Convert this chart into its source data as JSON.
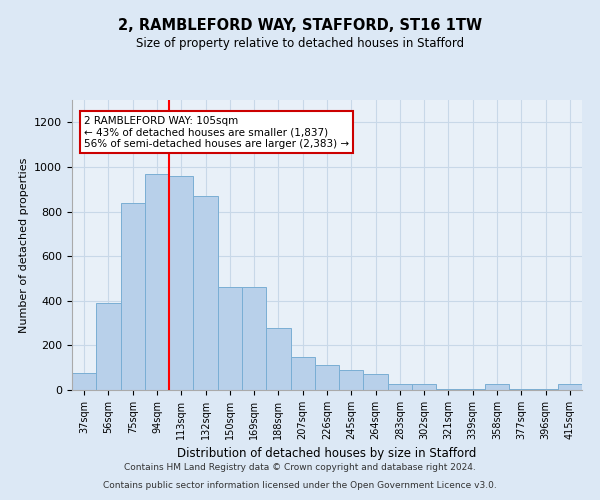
{
  "title1": "2, RAMBLEFORD WAY, STAFFORD, ST16 1TW",
  "title2": "Size of property relative to detached houses in Stafford",
  "xlabel": "Distribution of detached houses by size in Stafford",
  "ylabel": "Number of detached properties",
  "categories": [
    "37sqm",
    "56sqm",
    "75sqm",
    "94sqm",
    "113sqm",
    "132sqm",
    "150sqm",
    "169sqm",
    "188sqm",
    "207sqm",
    "226sqm",
    "245sqm",
    "264sqm",
    "283sqm",
    "302sqm",
    "321sqm",
    "339sqm",
    "358sqm",
    "377sqm",
    "396sqm",
    "415sqm"
  ],
  "values": [
    75,
    390,
    840,
    970,
    960,
    870,
    460,
    460,
    280,
    150,
    110,
    90,
    70,
    25,
    25,
    5,
    5,
    25,
    5,
    5,
    25
  ],
  "bar_color": "#b8d0ea",
  "bar_edge_color": "#7aaed4",
  "red_line_index": 4,
  "annotation_text": "2 RAMBLEFORD WAY: 105sqm\n← 43% of detached houses are smaller (1,837)\n56% of semi-detached houses are larger (2,383) →",
  "annotation_box_color": "#ffffff",
  "annotation_box_edge": "#cc0000",
  "ylim": [
    0,
    1300
  ],
  "yticks": [
    0,
    200,
    400,
    600,
    800,
    1000,
    1200
  ],
  "footer1": "Contains HM Land Registry data © Crown copyright and database right 2024.",
  "footer2": "Contains public sector information licensed under the Open Government Licence v3.0.",
  "grid_color": "#c8d8e8",
  "background_color": "#dce8f5",
  "plot_bg_color": "#e8f0f8"
}
